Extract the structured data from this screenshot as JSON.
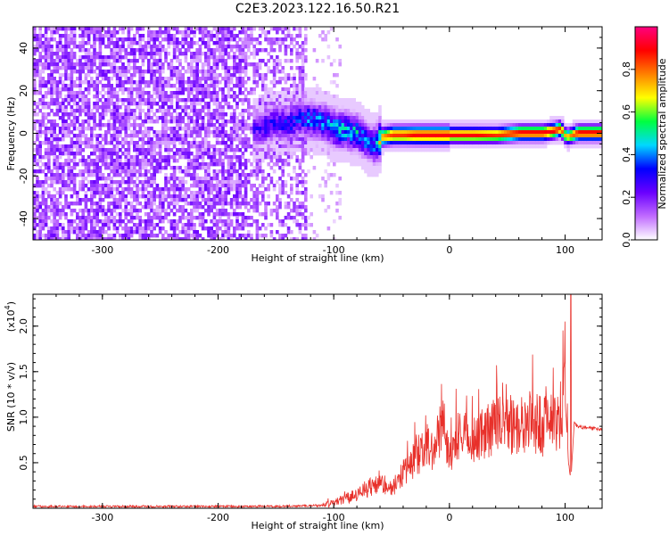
{
  "chart_data": [
    {
      "type": "heatmap",
      "title": "C2E3.2023.122.16.50.R21",
      "xlabel": "Height of straight line (km)",
      "ylabel": "Frequency (Hz)",
      "xlim": [
        -360,
        132
      ],
      "ylim": [
        -50,
        50
      ],
      "xticks": [
        -300,
        -200,
        -100,
        0,
        100
      ],
      "yticks": [
        -40,
        -20,
        0,
        20,
        40
      ],
      "grid": false,
      "ridge_x": [
        -170,
        -160,
        -150,
        -140,
        -130,
        -120,
        -110,
        -100,
        -90,
        -80,
        -75,
        -70,
        -65,
        -60,
        -50,
        -40,
        -30,
        -20,
        -10,
        0,
        20,
        40,
        60,
        80,
        90,
        95,
        100,
        110,
        120,
        132
      ],
      "ridge_freq": [
        2,
        4,
        6,
        5,
        8,
        7,
        6,
        3,
        2,
        1,
        -2,
        -4,
        -5,
        -1,
        0,
        0,
        0,
        0,
        0,
        0,
        0,
        0,
        1,
        1,
        2,
        3,
        -1,
        1,
        1,
        1
      ],
      "ridge_amp": [
        0.25,
        0.3,
        0.3,
        0.32,
        0.35,
        0.4,
        0.42,
        0.45,
        0.45,
        0.45,
        0.4,
        0.35,
        0.4,
        0.75,
        0.85,
        0.85,
        0.9,
        0.9,
        0.9,
        0.9,
        0.9,
        0.85,
        0.9,
        0.9,
        0.9,
        0.85,
        0.7,
        0.9,
        0.9,
        0.9
      ],
      "colorbar": {
        "label": "Normalized spectral amplitude",
        "range": [
          0,
          1
        ],
        "ticks": [
          "0.0",
          "0.2",
          "0.4",
          "0.6",
          "0.8"
        ],
        "colors": [
          "#ffffff",
          "#c06bff",
          "#6a00ff",
          "#0000ff",
          "#00d8ff",
          "#00ff40",
          "#ffff00",
          "#ff8000",
          "#ff0000",
          "#ff0080"
        ]
      }
    },
    {
      "type": "line",
      "xlabel": "Height of straight line (km)",
      "ylabel": "SNR (10 * v/v)",
      "exponent_label": "(x10",
      "exponent_power": "4",
      "exponent_close": ")",
      "xlim": [
        -360,
        132
      ],
      "ylim": [
        0,
        2.35
      ],
      "xticks": [
        -300,
        -200,
        -100,
        0,
        100
      ],
      "yticks": [
        "0.5",
        "1.0",
        "1.5",
        "2.0"
      ],
      "grid": false,
      "line_color": "#e8302a",
      "x": [
        -360,
        -300,
        -250,
        -200,
        -150,
        -110,
        -100,
        -90,
        -80,
        -70,
        -60,
        -50,
        -45,
        -40,
        -35,
        -30,
        -25,
        -20,
        -15,
        -10,
        -5,
        0,
        10,
        20,
        30,
        40,
        50,
        60,
        70,
        80,
        90,
        95,
        100,
        103,
        105,
        108,
        110,
        120,
        132
      ],
      "values": [
        0.02,
        0.02,
        0.02,
        0.02,
        0.02,
        0.03,
        0.06,
        0.1,
        0.15,
        0.22,
        0.3,
        0.2,
        0.3,
        0.4,
        0.42,
        0.55,
        0.6,
        0.7,
        0.6,
        0.75,
        0.8,
        0.65,
        0.8,
        0.75,
        0.85,
        0.9,
        0.92,
        0.88,
        0.95,
        0.9,
        0.92,
        0.98,
        1.2,
        0.5,
        0.3,
        0.95,
        0.9,
        0.88,
        0.87
      ],
      "spikes": [
        {
          "x": 100,
          "value": 2.05
        },
        {
          "x": 105,
          "value": 2.35
        },
        {
          "x": 102,
          "value": 1.15
        }
      ]
    }
  ]
}
